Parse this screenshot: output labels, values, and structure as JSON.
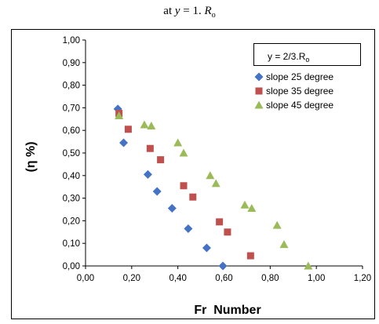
{
  "caption": {
    "prefix": "at ",
    "var": "y",
    "mid": " = 1. ",
    "r": "R",
    "sub": "o"
  },
  "chart_data": {
    "type": "scatter",
    "title": "",
    "xlabel": "Fr  Number",
    "ylabel": "(η %)",
    "xlim": [
      0,
      1.2
    ],
    "ylim": [
      0,
      1.0
    ],
    "x_ticks": [
      "0,00",
      "0,20",
      "0,40",
      "0,60",
      "0,80",
      "1,00",
      "1,20"
    ],
    "y_ticks": [
      "0,00",
      "0,10",
      "0,20",
      "0,30",
      "0,40",
      "0,50",
      "0,60",
      "0,70",
      "0,80",
      "0,90",
      "1,00"
    ],
    "grid": false,
    "legend_position": "top-right",
    "annotation": "y = 2/3.R",
    "annotation_sub": "o",
    "series": [
      {
        "name": "slope 25 degree",
        "color": "#4472C4",
        "marker": "diamond",
        "points": [
          [
            0.14,
            0.695
          ],
          [
            0.165,
            0.545
          ],
          [
            0.27,
            0.405
          ],
          [
            0.31,
            0.33
          ],
          [
            0.375,
            0.255
          ],
          [
            0.445,
            0.165
          ],
          [
            0.525,
            0.08
          ],
          [
            0.595,
            0.0
          ]
        ]
      },
      {
        "name": "slope 35 degree",
        "color": "#C0504D",
        "marker": "square",
        "points": [
          [
            0.145,
            0.675
          ],
          [
            0.185,
            0.605
          ],
          [
            0.28,
            0.52
          ],
          [
            0.325,
            0.47
          ],
          [
            0.425,
            0.355
          ],
          [
            0.465,
            0.305
          ],
          [
            0.58,
            0.195
          ],
          [
            0.615,
            0.15
          ],
          [
            0.715,
            0.045
          ]
        ]
      },
      {
        "name": "slope 45 degree",
        "color": "#9BBB59",
        "marker": "triangle",
        "points": [
          [
            0.145,
            0.665
          ],
          [
            0.255,
            0.625
          ],
          [
            0.285,
            0.62
          ],
          [
            0.4,
            0.545
          ],
          [
            0.425,
            0.5
          ],
          [
            0.54,
            0.4
          ],
          [
            0.565,
            0.365
          ],
          [
            0.69,
            0.27
          ],
          [
            0.72,
            0.255
          ],
          [
            0.83,
            0.18
          ],
          [
            0.86,
            0.095
          ],
          [
            0.965,
            0.0
          ]
        ]
      }
    ]
  }
}
